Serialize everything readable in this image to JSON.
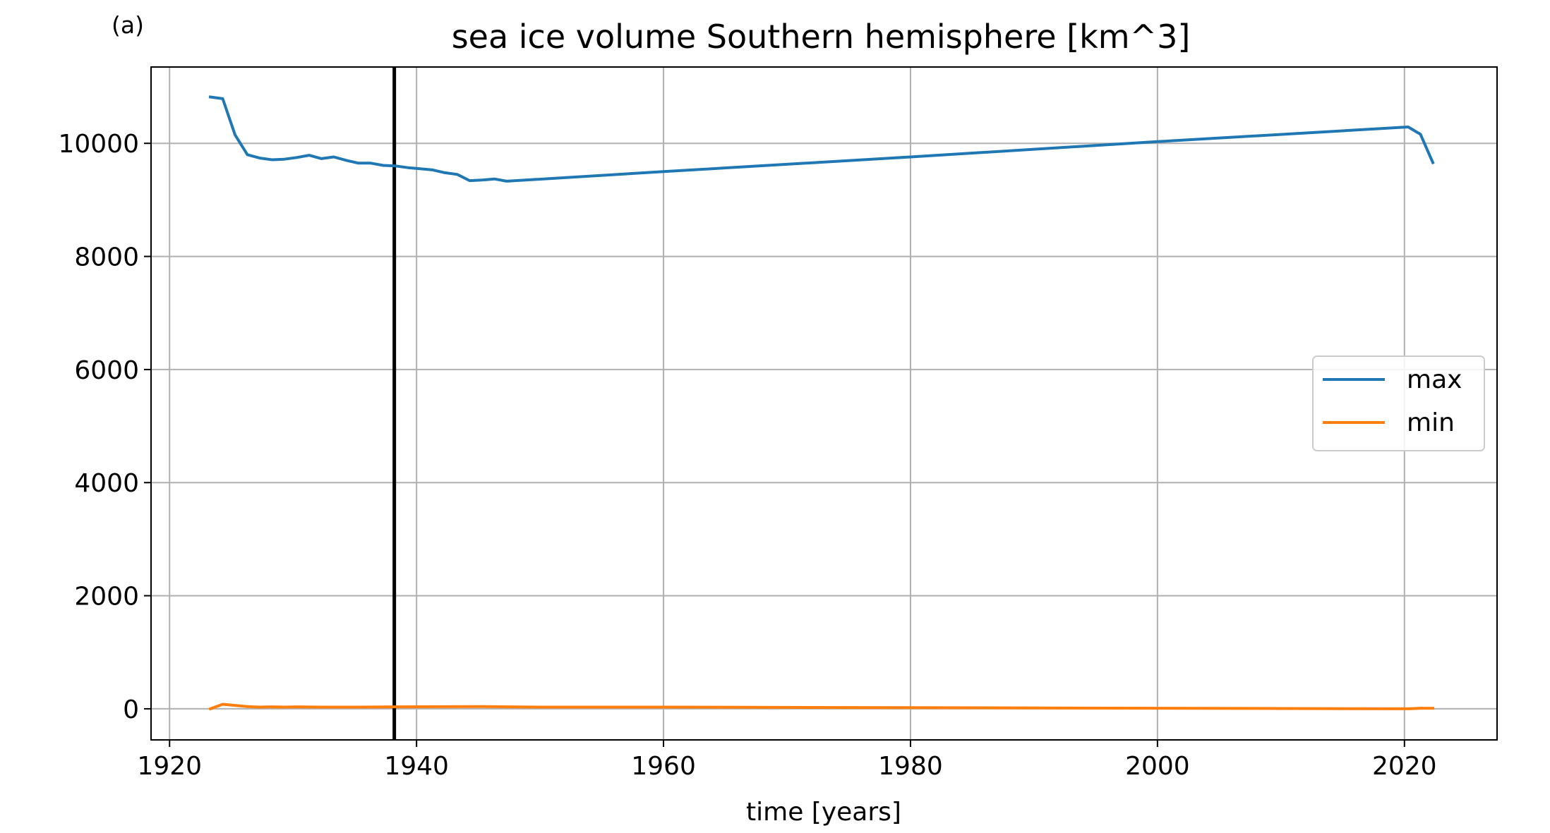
{
  "panel_label": "(a)",
  "chart_data": {
    "type": "line",
    "title": "sea ice volume Southern hemisphere [km^3]",
    "xlabel": "time [years]",
    "ylabel": "",
    "xlim": [
      1918.5,
      2027.5
    ],
    "ylim": [
      -550,
      11350
    ],
    "xticks": [
      1920,
      1940,
      1960,
      1980,
      2000,
      2020
    ],
    "xtick_labels": [
      "1920",
      "1940",
      "1960",
      "1980",
      "2000",
      "2020"
    ],
    "yticks": [
      0,
      2000,
      4000,
      6000,
      8000,
      10000
    ],
    "ytick_labels": [
      "0",
      "2000",
      "4000",
      "6000",
      "8000",
      "10000"
    ],
    "grid": true,
    "legend_placement": "center-right",
    "vline_x": 1938.2,
    "vline_color": "#000000",
    "series": [
      {
        "name": "max",
        "color": "#1f77b4",
        "x": [
          1923.3,
          1924.3,
          1925.3,
          1926.3,
          1927.3,
          1928.3,
          1929.3,
          1930.3,
          1931.3,
          1932.3,
          1933.3,
          1934.3,
          1935.3,
          1936.3,
          1937.3,
          1938.3,
          1939.3,
          1940.3,
          1941.3,
          1942.3,
          1943.3,
          1944.3,
          1945.3,
          1946.3,
          1947.3,
          1960.0,
          1980.0,
          2000.0,
          2020.3,
          2021.3,
          2022.3
        ],
        "y": [
          10820,
          10790,
          10150,
          9800,
          9740,
          9710,
          9720,
          9750,
          9790,
          9730,
          9760,
          9700,
          9650,
          9650,
          9610,
          9600,
          9570,
          9550,
          9530,
          9480,
          9450,
          9340,
          9350,
          9370,
          9330,
          9500,
          9760,
          10030,
          10290,
          10160,
          9660
        ]
      },
      {
        "name": "min",
        "color": "#ff7f0e",
        "x": [
          1923.3,
          1924.3,
          1925.3,
          1926.3,
          1927.3,
          1928.3,
          1929.3,
          1930.3,
          1932.3,
          1935.3,
          1938.3,
          1945.3,
          1950.0,
          1960.0,
          1980.0,
          2000.0,
          2020.3,
          2021.3,
          2022.3
        ],
        "y": [
          0,
          80,
          60,
          40,
          30,
          35,
          30,
          35,
          30,
          30,
          35,
          40,
          30,
          30,
          20,
          10,
          0,
          10,
          10
        ]
      }
    ]
  }
}
